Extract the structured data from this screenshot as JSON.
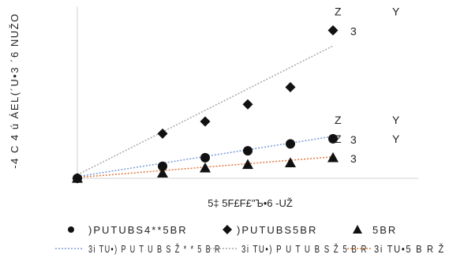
{
  "chart_data": {
    "type": "scatter",
    "title": "",
    "xlabel": "5‡ 5F£F£\"Ъ•6   -UŽ",
    "ylabel": "-4 C 4 ú ÁEL(´U•3 ´6  NUŽO",
    "xlim": [
      0,
      8
    ],
    "ylim": [
      0,
      10
    ],
    "grid": false,
    "x": [
      0,
      2,
      3,
      4,
      5,
      6
    ],
    "series": [
      {
        "name": ")PUTUBS4**5BR",
        "marker": "circle",
        "color": "#111111",
        "values": [
          0,
          0.7,
          1.2,
          1.6,
          2.0,
          2.3
        ]
      },
      {
        "name": ")PUTUBS5BR",
        "marker": "diamond",
        "color": "#111111",
        "values": [
          0,
          2.6,
          3.3,
          4.3,
          5.3,
          8.6
        ]
      },
      {
        "name": "5BR",
        "marker": "triangle",
        "color": "#111111",
        "values": [
          0,
          0.3,
          0.6,
          0.8,
          0.9,
          1.2
        ]
      }
    ],
    "trendlines": [
      {
        "name": "3i TU•) P U T U B S Ž * * 5 B R",
        "color": "#7b9bd8",
        "style": "dotted",
        "slope": 0.39,
        "intercept": 0.1
      },
      {
        "name": "3i TU•) P U T U B S Ž 5 B R",
        "color": "#a8a8a8",
        "style": "dotted",
        "slope": 1.25,
        "intercept": 0.2
      },
      {
        "name": "3i TU•5 B R Ž",
        "color": "#e07a3c",
        "style": "dotted",
        "slope": 0.2,
        "intercept": 0.05
      }
    ],
    "equations": [
      {
        "series": 1,
        "line1_a": "Z",
        "line1_b": "Y",
        "line2": "3"
      },
      {
        "series": 0,
        "line1_a": "Z",
        "line1_b": "Y",
        "line2": "3"
      },
      {
        "series": 2,
        "line1_a": "Z",
        "line1_b": "Y",
        "line2": "3"
      }
    ],
    "legend": {
      "placement": "bottom"
    }
  }
}
